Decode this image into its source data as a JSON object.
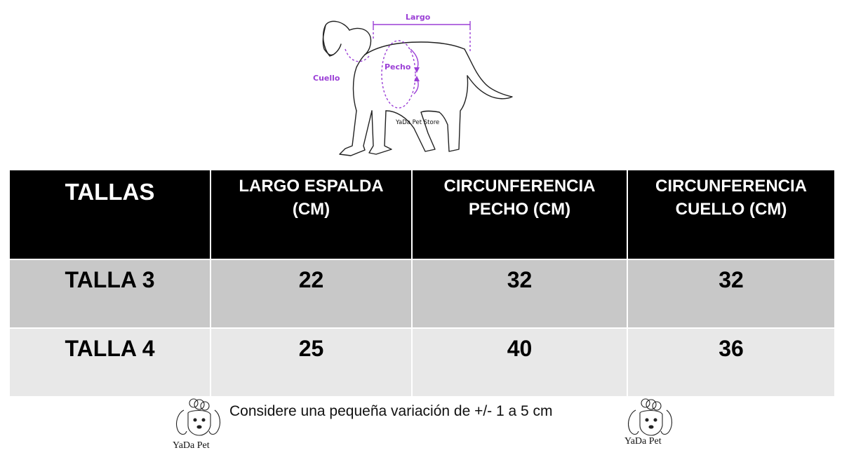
{
  "diagram": {
    "labels": {
      "length": "Largo",
      "chest": "Pecho",
      "neck": "Cuello",
      "store": "YaDa Pet Store"
    },
    "accent_color": "#9b3fd6"
  },
  "table": {
    "headers": [
      {
        "lines": [
          "TALLAS"
        ]
      },
      {
        "lines": [
          "LARGO ESPALDA",
          "(CM)"
        ]
      },
      {
        "lines": [
          "CIRCUNFERENCIA",
          "PECHO (CM)"
        ]
      },
      {
        "lines": [
          "CIRCUNFERENCIA",
          "CUELLO (CM)"
        ]
      }
    ],
    "rows": [
      {
        "size": "TALLA 3",
        "back_length": "22",
        "chest": "32",
        "neck": "32"
      },
      {
        "size": "TALLA 4",
        "back_length": "25",
        "chest": "40",
        "neck": "36"
      }
    ],
    "colors": {
      "header_bg": "#000000",
      "row_a": "#c8c8c8",
      "row_b": "#e8e8e8"
    }
  },
  "note": "Considere una pequeña variación de +/- 1 a 5 cm",
  "logo": {
    "text": "YaDa Pet",
    "icon": "poodle-icon"
  }
}
